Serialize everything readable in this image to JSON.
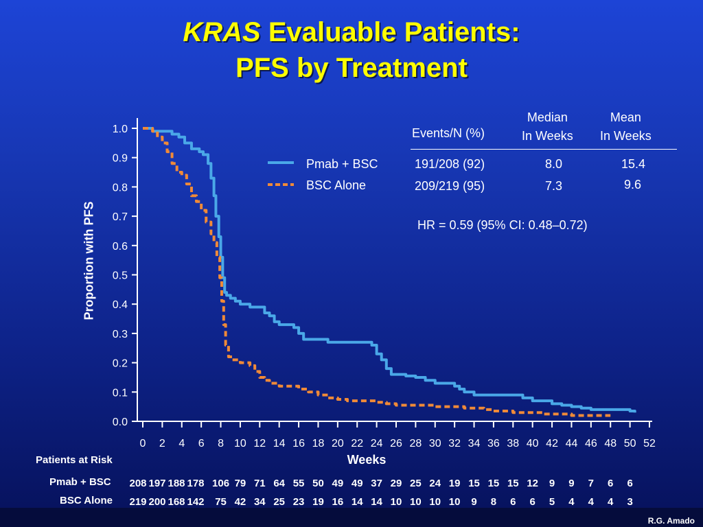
{
  "title": {
    "italic": "KRAS",
    "line1_rest": " Evaluable Patients:",
    "line2": "PFS by Treatment"
  },
  "table": {
    "headers": [
      "Events/N (%)",
      "Median\nIn Weeks",
      "Mean\nIn Weeks"
    ],
    "rows": [
      {
        "events": "191/208 (92)",
        "median": "8.0",
        "mean": "15.4"
      },
      {
        "events": "209/219 (95)",
        "median": "7.3",
        "mean": "9.6"
      }
    ],
    "hr": "HR = 0.59 (95% CI: 0.48–0.72)"
  },
  "risk_table": {
    "header": "Patients at Risk",
    "rows": [
      {
        "label": "Pmab + BSC",
        "values": [
          "208",
          "197",
          "188",
          "178",
          "106",
          "79",
          "71",
          "64",
          "55",
          "50",
          "49",
          "49",
          "37",
          "29",
          "25",
          "24",
          "19",
          "15",
          "15",
          "15",
          "12",
          "9",
          "9",
          "7",
          "6",
          "6"
        ]
      },
      {
        "label": "BSC Alone",
        "values": [
          "219",
          "200",
          "168",
          "142",
          "75",
          "42",
          "34",
          "25",
          "23",
          "19",
          "16",
          "14",
          "14",
          "10",
          "10",
          "10",
          "10",
          "9",
          "8",
          "6",
          "6",
          "5",
          "4",
          "4",
          "4",
          "3"
        ]
      }
    ]
  },
  "credit": "R.G. Amado",
  "colors": {
    "pmab": "#4aa8e8",
    "bsc": "#f08a38",
    "title": "#ffff00"
  },
  "chart_data": {
    "type": "line",
    "xlabel": "Weeks",
    "ylabel": "Proportion with PFS",
    "xlim": [
      0,
      52
    ],
    "ylim": [
      0,
      1
    ],
    "xticks": [
      "0",
      "2",
      "4",
      "6",
      "8",
      "10",
      "12",
      "14",
      "16",
      "18",
      "20",
      "22",
      "24",
      "26",
      "28",
      "30",
      "32",
      "34",
      "36",
      "38",
      "40",
      "42",
      "44",
      "46",
      "48",
      "50",
      "52"
    ],
    "yticks": [
      "0.0",
      "0.1",
      "0.2",
      "0.3",
      "0.4",
      "0.5",
      "0.6",
      "0.7",
      "0.8",
      "0.9",
      "1.0"
    ],
    "legend_position": "top-right",
    "series": [
      {
        "name": "Pmab + BSC",
        "style": "solid",
        "points": [
          [
            0,
            1.0
          ],
          [
            0.5,
            1.0
          ],
          [
            1,
            0.99
          ],
          [
            2.5,
            0.99
          ],
          [
            3,
            0.98
          ],
          [
            3.7,
            0.97
          ],
          [
            4.3,
            0.95
          ],
          [
            5,
            0.93
          ],
          [
            5.8,
            0.92
          ],
          [
            6.2,
            0.91
          ],
          [
            6.7,
            0.88
          ],
          [
            7,
            0.83
          ],
          [
            7.3,
            0.77
          ],
          [
            7.5,
            0.7
          ],
          [
            7.8,
            0.63
          ],
          [
            8,
            0.56
          ],
          [
            8.2,
            0.49
          ],
          [
            8.4,
            0.44
          ],
          [
            8.6,
            0.43
          ],
          [
            9,
            0.42
          ],
          [
            9.5,
            0.41
          ],
          [
            10,
            0.4
          ],
          [
            10.5,
            0.4
          ],
          [
            11,
            0.39
          ],
          [
            12,
            0.39
          ],
          [
            12.5,
            0.37
          ],
          [
            13,
            0.36
          ],
          [
            13.5,
            0.34
          ],
          [
            14,
            0.33
          ],
          [
            15,
            0.33
          ],
          [
            15.5,
            0.32
          ],
          [
            16,
            0.3
          ],
          [
            16.5,
            0.28
          ],
          [
            17,
            0.28
          ],
          [
            18,
            0.28
          ],
          [
            19,
            0.27
          ],
          [
            20,
            0.27
          ],
          [
            22,
            0.27
          ],
          [
            23,
            0.27
          ],
          [
            23.5,
            0.26
          ],
          [
            24,
            0.23
          ],
          [
            24.5,
            0.21
          ],
          [
            25,
            0.18
          ],
          [
            25.5,
            0.16
          ],
          [
            26,
            0.16
          ],
          [
            27,
            0.155
          ],
          [
            28,
            0.15
          ],
          [
            29,
            0.14
          ],
          [
            30,
            0.13
          ],
          [
            31,
            0.13
          ],
          [
            32,
            0.12
          ],
          [
            32.5,
            0.11
          ],
          [
            33,
            0.1
          ],
          [
            34,
            0.09
          ],
          [
            36,
            0.09
          ],
          [
            38,
            0.09
          ],
          [
            39,
            0.08
          ],
          [
            40,
            0.07
          ],
          [
            41,
            0.07
          ],
          [
            42,
            0.06
          ],
          [
            43,
            0.055
          ],
          [
            44,
            0.05
          ],
          [
            45,
            0.045
          ],
          [
            46,
            0.04
          ],
          [
            48,
            0.04
          ],
          [
            49,
            0.04
          ],
          [
            50,
            0.035
          ],
          [
            50.5,
            0.03
          ]
        ]
      },
      {
        "name": "BSC Alone",
        "style": "dashed",
        "points": [
          [
            0,
            1.0
          ],
          [
            0.5,
            1.0
          ],
          [
            1,
            0.99
          ],
          [
            1.5,
            0.97
          ],
          [
            2,
            0.95
          ],
          [
            2.5,
            0.92
          ],
          [
            3,
            0.88
          ],
          [
            3.5,
            0.85
          ],
          [
            4,
            0.84
          ],
          [
            4.5,
            0.81
          ],
          [
            5,
            0.77
          ],
          [
            5.5,
            0.75
          ],
          [
            6,
            0.72
          ],
          [
            6.5,
            0.68
          ],
          [
            7,
            0.64
          ],
          [
            7.3,
            0.61
          ],
          [
            7.6,
            0.56
          ],
          [
            7.9,
            0.49
          ],
          [
            8.1,
            0.41
          ],
          [
            8.3,
            0.33
          ],
          [
            8.5,
            0.26
          ],
          [
            8.8,
            0.22
          ],
          [
            9.2,
            0.21
          ],
          [
            10,
            0.2
          ],
          [
            11,
            0.19
          ],
          [
            11.5,
            0.17
          ],
          [
            12,
            0.15
          ],
          [
            12.5,
            0.14
          ],
          [
            13,
            0.13
          ],
          [
            14,
            0.12
          ],
          [
            15,
            0.12
          ],
          [
            16,
            0.11
          ],
          [
            17,
            0.1
          ],
          [
            18,
            0.09
          ],
          [
            19,
            0.08
          ],
          [
            20,
            0.075
          ],
          [
            21,
            0.07
          ],
          [
            22,
            0.07
          ],
          [
            23,
            0.07
          ],
          [
            24,
            0.065
          ],
          [
            25,
            0.06
          ],
          [
            26,
            0.055
          ],
          [
            28,
            0.055
          ],
          [
            30,
            0.05
          ],
          [
            32,
            0.05
          ],
          [
            33,
            0.045
          ],
          [
            35,
            0.04
          ],
          [
            36,
            0.035
          ],
          [
            38,
            0.03
          ],
          [
            40,
            0.03
          ],
          [
            41,
            0.025
          ],
          [
            42,
            0.025
          ],
          [
            44,
            0.02
          ],
          [
            46,
            0.02
          ],
          [
            48,
            0.02
          ]
        ]
      }
    ]
  }
}
